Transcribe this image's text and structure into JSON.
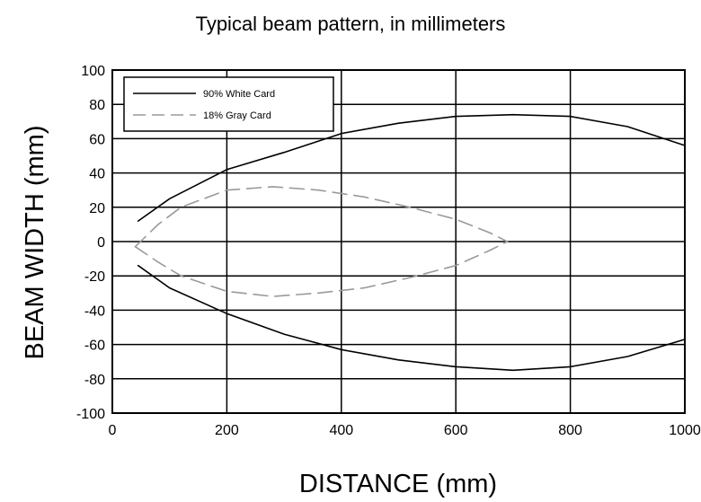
{
  "chart_data": {
    "type": "line",
    "title": "Typical beam pattern, in millimeters",
    "xlabel": "DISTANCE (mm)",
    "ylabel": "BEAM WIDTH (mm)",
    "xlim": [
      0,
      1000
    ],
    "ylim": [
      -100,
      100
    ],
    "x_ticks": [
      0,
      200,
      400,
      600,
      800,
      1000
    ],
    "y_ticks": [
      100,
      80,
      60,
      40,
      20,
      0,
      -20,
      -40,
      -60,
      -80,
      -100
    ],
    "x_tick_labels": [
      "0",
      "200",
      "400",
      "600",
      "800",
      "1000"
    ],
    "y_tick_labels": [
      "100",
      "80",
      "60",
      "40",
      "20",
      "0",
      "-20",
      "-40",
      "-60",
      "-80",
      "-100"
    ],
    "grid": true,
    "legend_position": "top-left",
    "series": [
      {
        "name": "90% White Card",
        "style": "solid",
        "color": "#000000",
        "upper": {
          "x": [
            45,
            100,
            200,
            300,
            400,
            500,
            600,
            700,
            800,
            900,
            1000
          ],
          "y": [
            12,
            25,
            42,
            52,
            63,
            69,
            73,
            74,
            73,
            67,
            56
          ]
        },
        "lower": {
          "x": [
            45,
            100,
            200,
            300,
            400,
            500,
            600,
            700,
            800,
            900,
            1000
          ],
          "y": [
            -14,
            -27,
            -42,
            -54,
            -63,
            -69,
            -73,
            -75,
            -73,
            -67,
            -57
          ]
        }
      },
      {
        "name": "18% Gray Card",
        "style": "dashed",
        "color": "#9a9a9a",
        "upper": {
          "x": [
            40,
            80,
            120,
            200,
            280,
            360,
            440,
            520,
            600,
            660,
            690
          ],
          "y": [
            -3,
            10,
            20,
            30,
            32,
            30,
            26,
            20,
            13,
            5,
            0
          ]
        },
        "lower": {
          "x": [
            40,
            80,
            120,
            200,
            280,
            360,
            440,
            520,
            600,
            660,
            690
          ],
          "y": [
            -3,
            -12,
            -20,
            -29,
            -32,
            -30,
            -27,
            -21,
            -14,
            -5,
            0
          ]
        }
      }
    ]
  }
}
